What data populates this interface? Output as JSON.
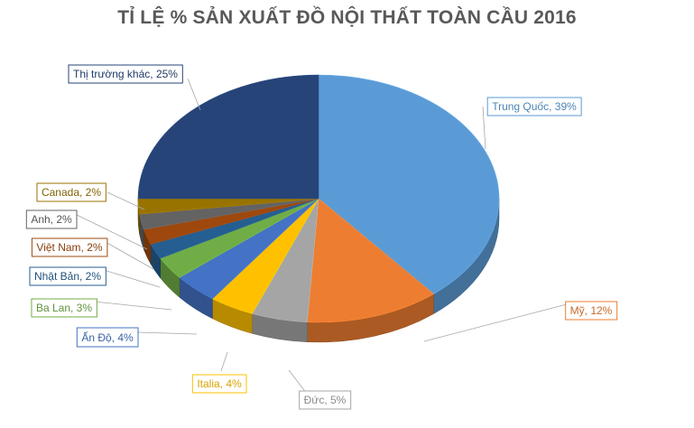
{
  "chart_data": {
    "type": "pie",
    "title": "TỈ LỆ % SẢN XUẤT ĐỒ NỘI THẤT TOÀN CẦU 2016",
    "legend": "none",
    "slices": [
      {
        "label": "Trung Quốc, 39%",
        "name": "Trung Quốc",
        "value": 39,
        "color": "#5B9BD5"
      },
      {
        "label": "Mỹ, 12%",
        "name": "Mỹ",
        "value": 12,
        "color": "#ED7D31"
      },
      {
        "label": "Đức, 5%",
        "name": "Đức",
        "value": 5,
        "color": "#A5A5A5"
      },
      {
        "label": "Italia, 4%",
        "name": "Italia",
        "value": 4,
        "color": "#FFC000"
      },
      {
        "label": "Ấn Độ, 4%",
        "name": "Ấn Độ",
        "value": 4,
        "color": "#4472C4"
      },
      {
        "label": "Ba Lan, 3%",
        "name": "Ba Lan",
        "value": 3,
        "color": "#70AD47"
      },
      {
        "label": "Nhật Bản, 2%",
        "name": "Nhật Bản",
        "value": 2,
        "color": "#255E91"
      },
      {
        "label": "Việt Nam, 2%",
        "name": "Việt Nam",
        "value": 2,
        "color": "#9E480E"
      },
      {
        "label": "Anh, 2%",
        "name": "Anh",
        "value": 2,
        "color": "#636363"
      },
      {
        "label": "Canada, 2%",
        "name": "Canada",
        "value": 2,
        "color": "#997300"
      },
      {
        "label": "Thị trường khác, 25%",
        "name": "Thị trường khác",
        "value": 25,
        "color": "#264478"
      }
    ]
  }
}
